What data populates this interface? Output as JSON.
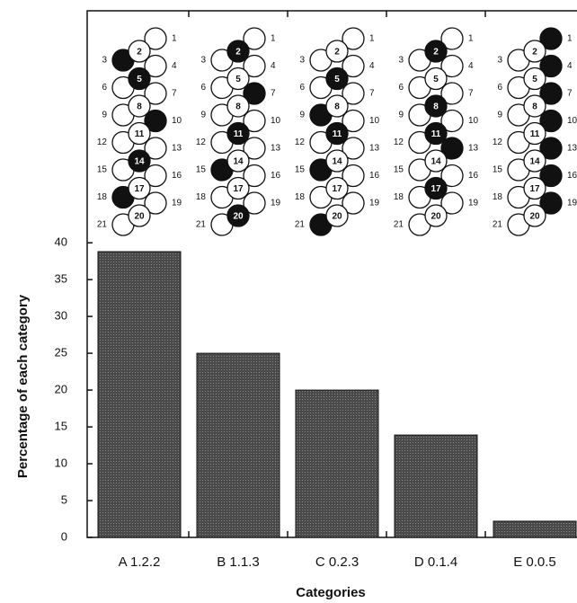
{
  "chart_data": {
    "type": "bar",
    "categories": [
      "A 1.2.2",
      "B 1.1.3",
      "C 0.2.3",
      "D 0.1.4",
      "E 0.0.5"
    ],
    "values": [
      38.8,
      25,
      20,
      13.9,
      2.2
    ],
    "color": "#4a4a4a",
    "x_label": "Categories",
    "y_label": "Percentage of each category",
    "ylim": [
      0,
      71.5
    ],
    "yticks": [
      0,
      5,
      10,
      15,
      20,
      25,
      30,
      35,
      40
    ],
    "grid": false,
    "wheel_positions": [
      1,
      2,
      3,
      4,
      5,
      6,
      7,
      8,
      9,
      10,
      11,
      12,
      13,
      14,
      15,
      16,
      17,
      18,
      19,
      20,
      21
    ],
    "wheel_filled": [
      [
        3,
        5,
        10,
        14,
        18
      ],
      [
        2,
        7,
        11,
        15,
        20
      ],
      [
        5,
        9,
        11,
        15,
        21
      ],
      [
        2,
        8,
        11,
        13,
        17
      ],
      [
        1,
        4,
        7,
        10,
        13,
        16,
        19
      ]
    ]
  }
}
